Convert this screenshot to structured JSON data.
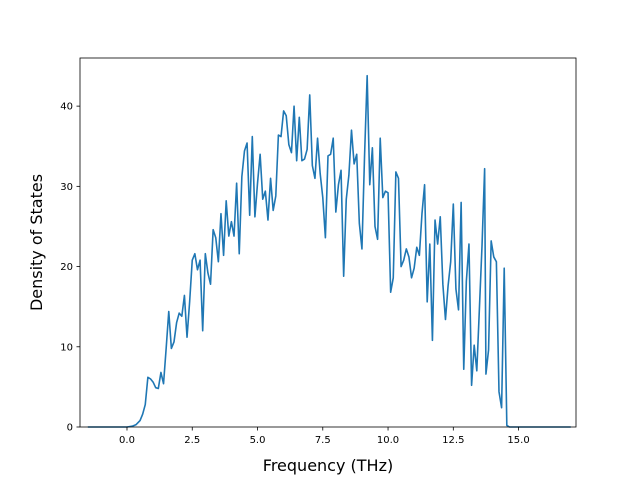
{
  "chart_data": {
    "type": "line",
    "title": "",
    "xlabel": "Frequency (THz)",
    "ylabel": "Density of States",
    "xlim": [
      -1.8,
      17.2
    ],
    "ylim": [
      0,
      46
    ],
    "xticks": [
      0.0,
      2.5,
      5.0,
      7.5,
      10.0,
      12.5,
      15.0
    ],
    "xtick_labels": [
      "0.0",
      "2.5",
      "5.0",
      "7.5",
      "10.0",
      "12.5",
      "15.0"
    ],
    "yticks": [
      0,
      10,
      20,
      30,
      40
    ],
    "ytick_labels": [
      "0",
      "10",
      "20",
      "30",
      "40"
    ],
    "grid": false,
    "legend": "none",
    "series": [
      {
        "color": "#1f77b4",
        "points": [
          [
            -1.5,
            0
          ],
          [
            -1.0,
            0
          ],
          [
            -0.5,
            0
          ],
          [
            0.0,
            0
          ],
          [
            0.2,
            0.1
          ],
          [
            0.35,
            0.3
          ],
          [
            0.5,
            0.8
          ],
          [
            0.6,
            1.6
          ],
          [
            0.7,
            2.8
          ],
          [
            0.8,
            6.2
          ],
          [
            0.9,
            6.0
          ],
          [
            1.0,
            5.6
          ],
          [
            1.1,
            4.9
          ],
          [
            1.2,
            4.8
          ],
          [
            1.3,
            6.8
          ],
          [
            1.4,
            5.4
          ],
          [
            1.5,
            9.8
          ],
          [
            1.6,
            14.4
          ],
          [
            1.7,
            9.8
          ],
          [
            1.8,
            10.6
          ],
          [
            1.9,
            13.0
          ],
          [
            2.0,
            14.2
          ],
          [
            2.1,
            13.8
          ],
          [
            2.2,
            16.4
          ],
          [
            2.3,
            11.2
          ],
          [
            2.4,
            15.6
          ],
          [
            2.5,
            20.8
          ],
          [
            2.6,
            21.6
          ],
          [
            2.7,
            19.6
          ],
          [
            2.8,
            20.8
          ],
          [
            2.9,
            12.0
          ],
          [
            3.0,
            21.6
          ],
          [
            3.1,
            19.2
          ],
          [
            3.2,
            17.8
          ],
          [
            3.3,
            24.6
          ],
          [
            3.4,
            23.6
          ],
          [
            3.5,
            20.6
          ],
          [
            3.6,
            26.6
          ],
          [
            3.7,
            21.4
          ],
          [
            3.8,
            28.2
          ],
          [
            3.9,
            23.8
          ],
          [
            4.0,
            25.6
          ],
          [
            4.1,
            23.8
          ],
          [
            4.2,
            30.4
          ],
          [
            4.3,
            21.6
          ],
          [
            4.4,
            31.2
          ],
          [
            4.5,
            34.4
          ],
          [
            4.6,
            35.4
          ],
          [
            4.7,
            26.4
          ],
          [
            4.8,
            36.2
          ],
          [
            4.9,
            26.2
          ],
          [
            5.0,
            30.4
          ],
          [
            5.1,
            34.0
          ],
          [
            5.2,
            28.4
          ],
          [
            5.3,
            29.4
          ],
          [
            5.4,
            25.8
          ],
          [
            5.5,
            31.0
          ],
          [
            5.6,
            27.0
          ],
          [
            5.7,
            28.8
          ],
          [
            5.8,
            36.4
          ],
          [
            5.9,
            36.2
          ],
          [
            6.0,
            39.4
          ],
          [
            6.1,
            38.8
          ],
          [
            6.2,
            35.2
          ],
          [
            6.3,
            34.2
          ],
          [
            6.4,
            40.0
          ],
          [
            6.5,
            33.2
          ],
          [
            6.6,
            38.6
          ],
          [
            6.7,
            33.2
          ],
          [
            6.8,
            33.4
          ],
          [
            6.9,
            34.6
          ],
          [
            7.0,
            41.4
          ],
          [
            7.1,
            32.6
          ],
          [
            7.2,
            31.0
          ],
          [
            7.3,
            36.0
          ],
          [
            7.4,
            31.6
          ],
          [
            7.5,
            28.6
          ],
          [
            7.6,
            23.6
          ],
          [
            7.7,
            33.8
          ],
          [
            7.8,
            34.0
          ],
          [
            7.9,
            36.0
          ],
          [
            8.0,
            26.8
          ],
          [
            8.1,
            30.2
          ],
          [
            8.2,
            32.0
          ],
          [
            8.3,
            18.8
          ],
          [
            8.4,
            28.4
          ],
          [
            8.5,
            31.4
          ],
          [
            8.6,
            37.0
          ],
          [
            8.7,
            32.8
          ],
          [
            8.8,
            34.0
          ],
          [
            8.9,
            25.4
          ],
          [
            9.0,
            22.2
          ],
          [
            9.1,
            33.8
          ],
          [
            9.2,
            43.8
          ],
          [
            9.3,
            30.2
          ],
          [
            9.4,
            34.8
          ],
          [
            9.5,
            25.0
          ],
          [
            9.6,
            23.4
          ],
          [
            9.7,
            36.0
          ],
          [
            9.8,
            28.6
          ],
          [
            9.9,
            29.4
          ],
          [
            10.0,
            29.2
          ],
          [
            10.1,
            16.8
          ],
          [
            10.2,
            18.6
          ],
          [
            10.3,
            31.8
          ],
          [
            10.4,
            31.0
          ],
          [
            10.5,
            20.0
          ],
          [
            10.6,
            20.8
          ],
          [
            10.7,
            22.2
          ],
          [
            10.8,
            21.2
          ],
          [
            10.9,
            18.6
          ],
          [
            11.0,
            19.8
          ],
          [
            11.1,
            22.4
          ],
          [
            11.2,
            21.4
          ],
          [
            11.3,
            26.6
          ],
          [
            11.4,
            30.2
          ],
          [
            11.5,
            15.6
          ],
          [
            11.6,
            22.8
          ],
          [
            11.7,
            10.8
          ],
          [
            11.8,
            25.8
          ],
          [
            11.9,
            22.8
          ],
          [
            12.0,
            26.2
          ],
          [
            12.1,
            17.8
          ],
          [
            12.2,
            13.4
          ],
          [
            12.3,
            17.6
          ],
          [
            12.4,
            20.6
          ],
          [
            12.5,
            27.8
          ],
          [
            12.6,
            17.2
          ],
          [
            12.7,
            14.6
          ],
          [
            12.8,
            28.0
          ],
          [
            12.9,
            7.2
          ],
          [
            13.0,
            18.2
          ],
          [
            13.1,
            22.8
          ],
          [
            13.2,
            5.2
          ],
          [
            13.3,
            10.2
          ],
          [
            13.4,
            7.0
          ],
          [
            13.5,
            14.8
          ],
          [
            13.6,
            22.6
          ],
          [
            13.7,
            32.2
          ],
          [
            13.75,
            6.6
          ],
          [
            13.85,
            9.6
          ],
          [
            13.95,
            23.2
          ],
          [
            14.05,
            21.2
          ],
          [
            14.15,
            20.6
          ],
          [
            14.25,
            4.4
          ],
          [
            14.35,
            2.4
          ],
          [
            14.45,
            19.8
          ],
          [
            14.55,
            0.2
          ],
          [
            14.65,
            0
          ],
          [
            15.0,
            0
          ],
          [
            15.5,
            0
          ],
          [
            16.0,
            0
          ],
          [
            16.5,
            0
          ],
          [
            17.0,
            0
          ]
        ]
      }
    ]
  }
}
